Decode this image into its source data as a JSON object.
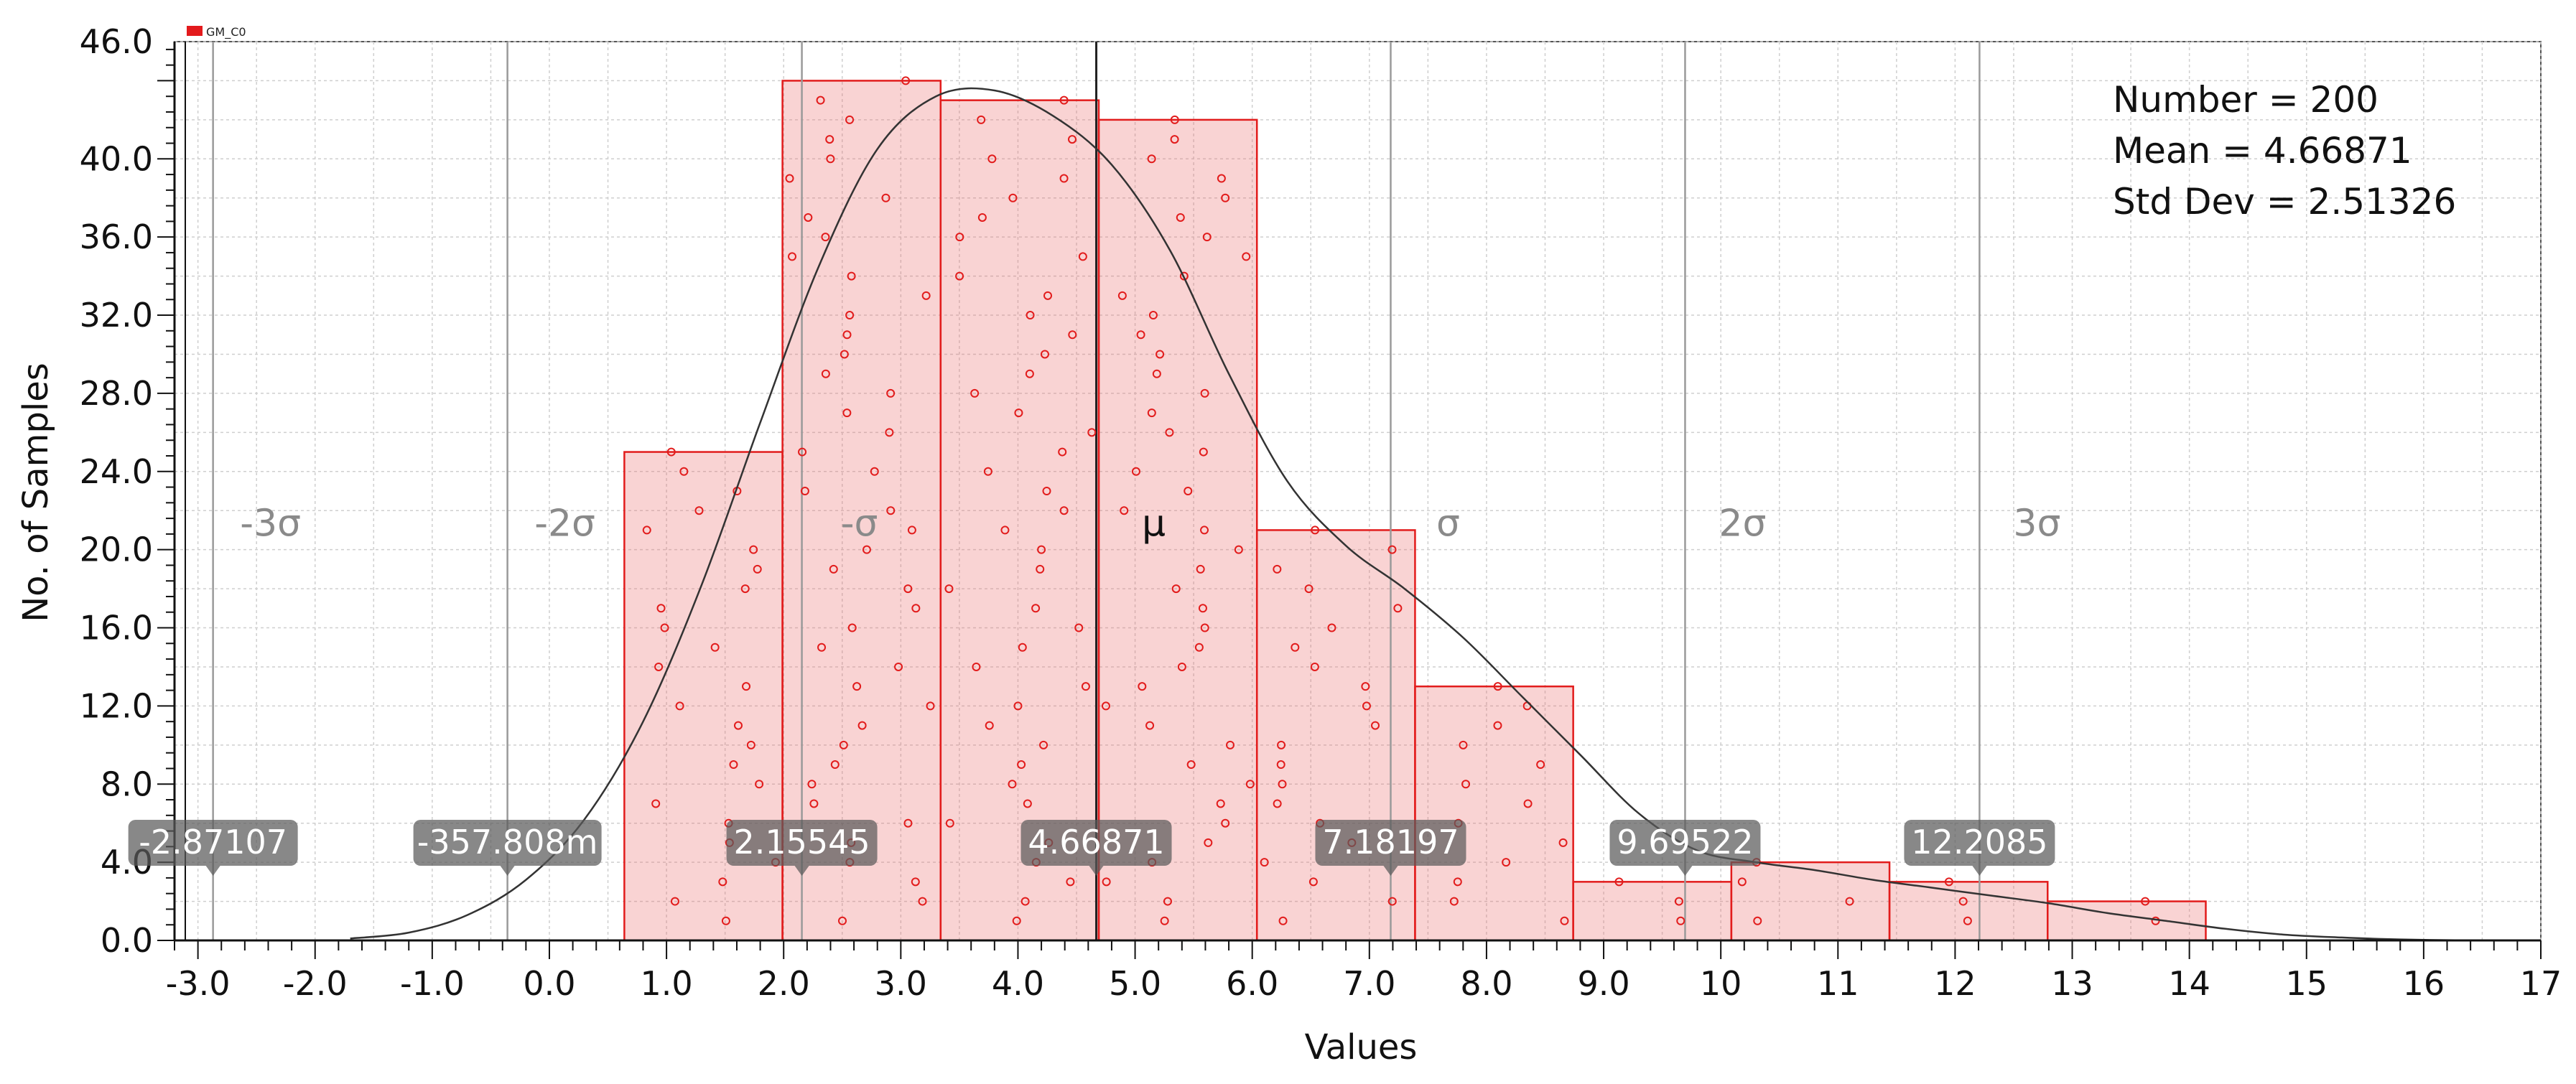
{
  "chart_data": {
    "type": "bar",
    "legend": {
      "label": "GM_C0",
      "color": "#e31a1c",
      "position": "top-left"
    },
    "xlabel": "Values",
    "ylabel": "No. of Samples",
    "xlim": [
      -3.2,
      17
    ],
    "ylim": [
      0,
      46
    ],
    "grid": true,
    "x_ticks": [
      {
        "v": -3,
        "t": "-3.0"
      },
      {
        "v": -2,
        "t": "-2.0"
      },
      {
        "v": -1,
        "t": "-1.0"
      },
      {
        "v": 0,
        "t": "0.0"
      },
      {
        "v": 1,
        "t": "1.0"
      },
      {
        "v": 2,
        "t": "2.0"
      },
      {
        "v": 3,
        "t": "3.0"
      },
      {
        "v": 4,
        "t": "4.0"
      },
      {
        "v": 5,
        "t": "5.0"
      },
      {
        "v": 6,
        "t": "6.0"
      },
      {
        "v": 7,
        "t": "7.0"
      },
      {
        "v": 8,
        "t": "8.0"
      },
      {
        "v": 9,
        "t": "9.0"
      },
      {
        "v": 10,
        "t": "10"
      },
      {
        "v": 11,
        "t": "11"
      },
      {
        "v": 12,
        "t": "12"
      },
      {
        "v": 13,
        "t": "13"
      },
      {
        "v": 14,
        "t": "14"
      },
      {
        "v": 15,
        "t": "15"
      },
      {
        "v": 16,
        "t": "16"
      },
      {
        "v": 17,
        "t": "17"
      }
    ],
    "y_ticks": [
      {
        "v": 0,
        "t": "0.0"
      },
      {
        "v": 4,
        "t": "4.0"
      },
      {
        "v": 8,
        "t": "8.0"
      },
      {
        "v": 12,
        "t": "12.0"
      },
      {
        "v": 16,
        "t": "16.0"
      },
      {
        "v": 20,
        "t": "20.0"
      },
      {
        "v": 24,
        "t": "24.0"
      },
      {
        "v": 28,
        "t": "28.0"
      },
      {
        "v": 32,
        "t": "32.0"
      },
      {
        "v": 36,
        "t": "36.0"
      },
      {
        "v": 40,
        "t": "40.0"
      },
      {
        "v": 46,
        "t": "46.0"
      }
    ],
    "bins": [
      {
        "x0": 0.64,
        "x1": 1.99,
        "count": 25
      },
      {
        "x0": 1.99,
        "x1": 3.34,
        "count": 44
      },
      {
        "x0": 3.34,
        "x1": 4.69,
        "count": 43
      },
      {
        "x0": 4.69,
        "x1": 6.04,
        "count": 42
      },
      {
        "x0": 6.04,
        "x1": 7.39,
        "count": 21
      },
      {
        "x0": 7.39,
        "x1": 8.74,
        "count": 13
      },
      {
        "x0": 8.74,
        "x1": 10.09,
        "count": 3
      },
      {
        "x0": 10.09,
        "x1": 11.44,
        "count": 4
      },
      {
        "x0": 11.44,
        "x1": 12.79,
        "count": 3
      },
      {
        "x0": 12.79,
        "x1": 14.14,
        "count": 2
      }
    ],
    "stats": {
      "number_text": "Number = 200",
      "mean_text": "Mean = 4.66871",
      "std_text": "Std Dev = 2.51326",
      "number": 200,
      "mean": 4.66871,
      "std_dev": 2.51326
    },
    "sigma_lines": [
      {
        "x": -2.87107,
        "label": "-3σ",
        "value_label": "-2.87107"
      },
      {
        "x": -0.357808,
        "label": "-2σ",
        "value_label": "-357.808m"
      },
      {
        "x": 2.15545,
        "label": "-σ",
        "value_label": "2.15545"
      },
      {
        "x": 4.66871,
        "label": "μ",
        "value_label": "4.66871"
      },
      {
        "x": 7.18197,
        "label": "σ",
        "value_label": "7.18197"
      },
      {
        "x": 9.69522,
        "label": "2σ",
        "value_label": "9.69522"
      },
      {
        "x": 12.2085,
        "label": "3σ",
        "value_label": "12.2085"
      }
    ],
    "curve": {
      "x": [
        -1.7,
        -1.2,
        -0.7,
        -0.2,
        0.3,
        0.8,
        1.3,
        1.8,
        2.3,
        2.8,
        3.3,
        3.8,
        4.3,
        4.8,
        5.3,
        5.8,
        6.3,
        6.8,
        7.3,
        7.8,
        8.3,
        8.8,
        9.3,
        9.8,
        10.3,
        10.8,
        11.3,
        11.8,
        12.3,
        12.8,
        13.3,
        13.8,
        14.3,
        14.8,
        15.3,
        15.8,
        16.4
      ],
      "y": [
        0.1,
        0.4,
        1.3,
        3.1,
        6.2,
        11.2,
        18.2,
        26.5,
        34.5,
        40.5,
        43.2,
        43.5,
        42.2,
        39.7,
        35.3,
        29.0,
        23.5,
        20.2,
        18.0,
        15.5,
        12.5,
        9.5,
        6.5,
        4.6,
        4.0,
        3.6,
        3.1,
        2.7,
        2.3,
        1.9,
        1.4,
        1.0,
        0.6,
        0.3,
        0.15,
        0.05,
        0.0
      ]
    }
  }
}
